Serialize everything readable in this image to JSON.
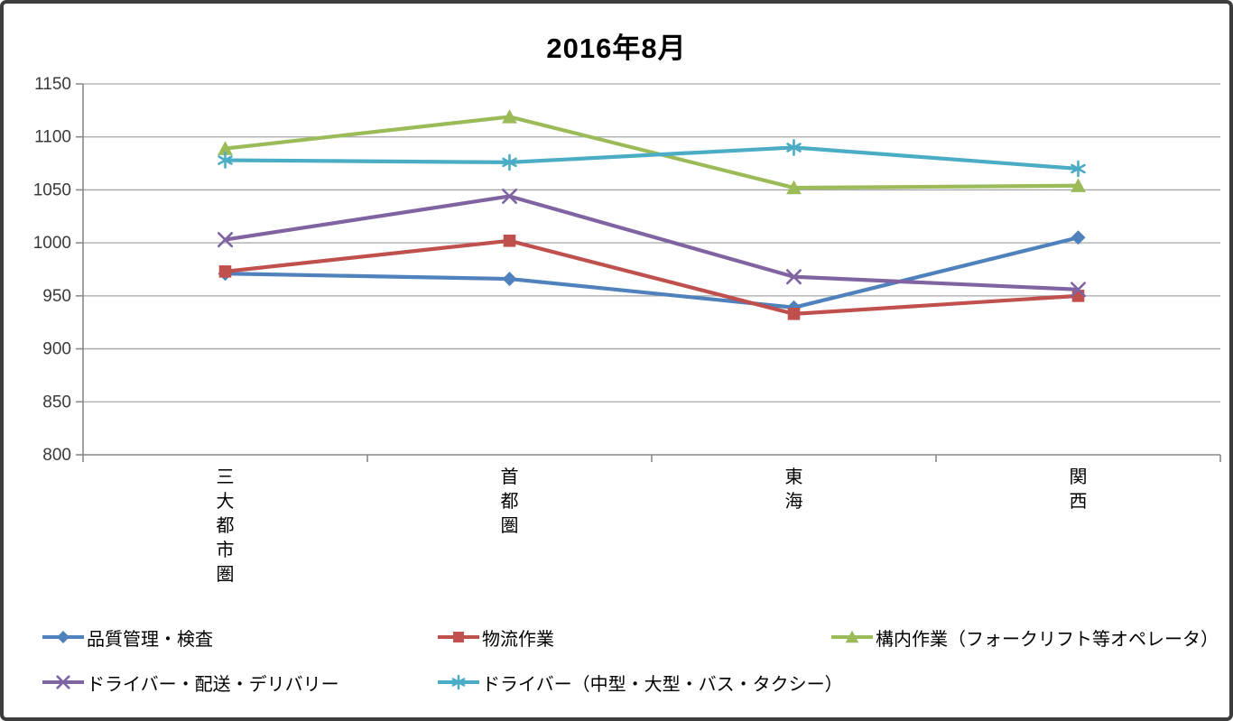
{
  "window": {
    "background": "#ffffff",
    "border_color": "#3d3d3d"
  },
  "chart_data": {
    "type": "line",
    "title": "2016年8月",
    "categories": [
      "三大都市圏",
      "首都圏",
      "東海",
      "関西"
    ],
    "series": [
      {
        "name": "品質管理・検査",
        "marker": "diamond",
        "color": "#4F81BD",
        "values": [
          971,
          966,
          939,
          1005
        ]
      },
      {
        "name": "物流作業",
        "marker": "square",
        "color": "#C0504D",
        "values": [
          973,
          1002,
          933,
          950
        ]
      },
      {
        "name": "構内作業（フォークリフト等オペレータ）",
        "marker": "triangle",
        "color": "#9BBB59",
        "values": [
          1089,
          1119,
          1052,
          1054
        ]
      },
      {
        "name": "ドライバー・配送・デリバリー",
        "marker": "x",
        "color": "#8064A2",
        "values": [
          1003,
          1044,
          968,
          956
        ]
      },
      {
        "name": "ドライバー（中型・大型・バス・タクシー）",
        "marker": "asterisk",
        "color": "#4BACC6",
        "values": [
          1078,
          1076,
          1090,
          1070
        ]
      }
    ],
    "ylim": [
      800,
      1150
    ],
    "ytick_step": 50,
    "yticks": [
      800,
      850,
      900,
      950,
      1000,
      1050,
      1100,
      1150
    ],
    "grid": true,
    "gridline_color": "#a6a6a6",
    "axis_color": "#898989",
    "tick_label_color": "#3a3a3a",
    "legend_position": "bottom"
  }
}
